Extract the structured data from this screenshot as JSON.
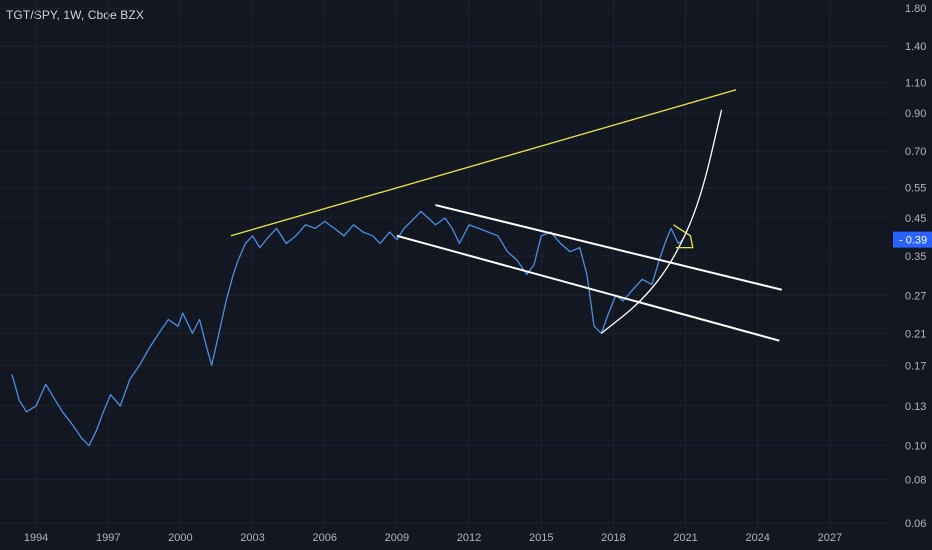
{
  "chart_data": {
    "type": "line",
    "title": "TGT/SPY, 1W, Cboe BZX",
    "xlabel": "",
    "ylabel": "",
    "x_ticks": [
      "1994",
      "1997",
      "2000",
      "2003",
      "2006",
      "2009",
      "2012",
      "2015",
      "2018",
      "2021",
      "2024",
      "2027"
    ],
    "y_ticks": [
      "1.80",
      "1.40",
      "1.10",
      "0.90",
      "0.70",
      "0.55",
      "0.45",
      "0.35",
      "0.27",
      "0.21",
      "0.17",
      "0.13",
      "0.10",
      "0.08",
      "0.06"
    ],
    "y_scale": "log",
    "ylim": [
      0.058,
      1.9
    ],
    "xlim": [
      1992.5,
      2029.5
    ],
    "grid": true,
    "last_price_label": "0.39",
    "colors": {
      "background": "#131722",
      "series": "#4a90e2",
      "grid": "#1e2230",
      "last_price_badge": "#2962ff",
      "trend_upper": "#e6e64a",
      "channel": "#ffffff"
    },
    "series": [
      {
        "x": [
          1993.0,
          1993.3,
          1993.6,
          1994.0,
          1994.4,
          1994.8,
          1995.1,
          1995.5,
          1995.9,
          1996.2,
          1996.5,
          1996.8,
          1997.1,
          1997.5,
          1997.9,
          1998.3,
          1998.7,
          1999.1,
          1999.5,
          1999.9,
          2000.1,
          2000.5,
          2000.8,
          2001.1,
          2001.3,
          2001.6,
          2001.9,
          2002.2,
          2002.4,
          2002.7,
          2003.0,
          2003.3,
          2003.7,
          2004.0,
          2004.4,
          2004.8,
          2005.2,
          2005.6,
          2006.0,
          2006.4,
          2006.8,
          2007.2,
          2007.6,
          2008.0,
          2008.3,
          2008.7,
          2009.0,
          2009.3,
          2009.6,
          2010.0,
          2010.3,
          2010.6,
          2011.0,
          2011.3,
          2011.6,
          2012.0,
          2012.4,
          2012.8,
          2013.2,
          2013.6,
          2014.0,
          2014.4,
          2014.7,
          2015.0,
          2015.4,
          2015.8,
          2016.2,
          2016.6,
          2016.9,
          2017.2,
          2017.5,
          2017.8,
          2018.1,
          2018.4,
          2018.8,
          2019.2,
          2019.6,
          2019.9,
          2020.2,
          2020.4,
          2020.7,
          2020.9
        ],
        "y": [
          0.16,
          0.135,
          0.125,
          0.13,
          0.15,
          0.135,
          0.125,
          0.115,
          0.105,
          0.1,
          0.11,
          0.125,
          0.14,
          0.13,
          0.155,
          0.17,
          0.19,
          0.21,
          0.23,
          0.22,
          0.24,
          0.21,
          0.23,
          0.19,
          0.17,
          0.21,
          0.26,
          0.31,
          0.34,
          0.38,
          0.4,
          0.37,
          0.4,
          0.42,
          0.38,
          0.4,
          0.43,
          0.42,
          0.44,
          0.42,
          0.4,
          0.43,
          0.41,
          0.4,
          0.38,
          0.41,
          0.39,
          0.42,
          0.44,
          0.47,
          0.45,
          0.43,
          0.45,
          0.42,
          0.38,
          0.43,
          0.42,
          0.41,
          0.4,
          0.36,
          0.34,
          0.31,
          0.33,
          0.4,
          0.41,
          0.38,
          0.36,
          0.37,
          0.31,
          0.22,
          0.21,
          0.24,
          0.27,
          0.26,
          0.28,
          0.3,
          0.29,
          0.34,
          0.39,
          0.42,
          0.38,
          0.39
        ]
      }
    ],
    "annotations": [
      {
        "type": "trendline",
        "color": "#e6e64a",
        "from": [
          2002.1,
          0.4
        ],
        "to": [
          2023.1,
          1.05
        ]
      },
      {
        "type": "trendline",
        "color": "#ffffff",
        "from": [
          2010.6,
          0.49
        ],
        "to": [
          2025.0,
          0.28
        ]
      },
      {
        "type": "trendline",
        "color": "#ffffff",
        "from": [
          2009.0,
          0.4
        ],
        "to": [
          2024.9,
          0.2
        ]
      },
      {
        "type": "curve",
        "color": "#ffffff",
        "points": [
          [
            2017.5,
            0.21
          ],
          [
            2019.2,
            0.26
          ],
          [
            2020.5,
            0.34
          ],
          [
            2021.6,
            0.5
          ],
          [
            2022.5,
            0.92
          ]
        ]
      },
      {
        "type": "pennant",
        "color": "#e6e64a",
        "points": [
          [
            2020.5,
            0.43
          ],
          [
            2021.2,
            0.4
          ],
          [
            2021.3,
            0.37
          ],
          [
            2020.6,
            0.37
          ]
        ]
      }
    ]
  }
}
